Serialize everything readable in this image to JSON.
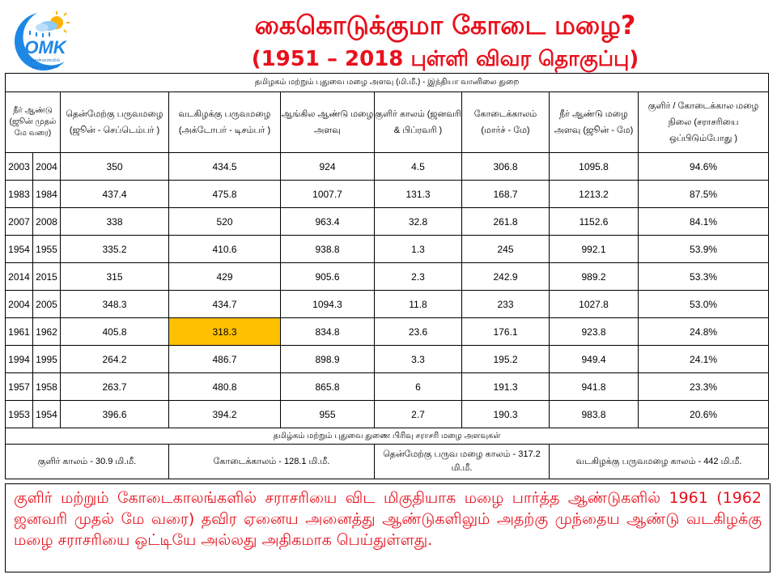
{
  "logo": {
    "brand": "OMK",
    "subtitle1": "சென்னையில்",
    "subtitle2": "ஒரு மழைநாள்"
  },
  "title": "கைகொடுக்குமா கோடை மழை?",
  "subtitle": "(1951 – 2018 புள்ளி விவர தொகுப்பு)",
  "table": {
    "caption": "தமிழகம் மற்றும் புதுவை மழை அளவு (மி.மீ.) - இந்தியா வானிலை துறை",
    "headers": [
      "நீர் ஆண்டு (ஜூன் முதல் மே வரை)",
      "தென்மேற்கு பருவமழை (ஜூன் - செப்டெம்பர் )",
      "வடகிழக்கு பருவமழை (அக்டோபர் - டிசம்பர் )",
      "ஆங்கில ஆண்டு மழை அளவு",
      "குளிர் காலம் (ஜனவரி & பிப்ரவரி )",
      "கோடைக்காலம் (மார்ச் - மே)",
      "நீர் ஆண்டு மழை அளவு (ஜூன் - மே)",
      "குளிர் / கோடைக்கால மழை நிலை (சராசரியை ஒப்பிடும்போது )"
    ],
    "rows": [
      [
        "2003",
        "2004",
        "350",
        "434.5",
        "924",
        "4.5",
        "306.8",
        "1095.8",
        "94.6%"
      ],
      [
        "1983",
        "1984",
        "437.4",
        "475.8",
        "1007.7",
        "131.3",
        "168.7",
        "1213.2",
        "87.5%"
      ],
      [
        "2007",
        "2008",
        "338",
        "520",
        "963.4",
        "32.8",
        "261.8",
        "1152.6",
        "84.1%"
      ],
      [
        "1954",
        "1955",
        "335.2",
        "410.6",
        "938.8",
        "1.3",
        "245",
        "992.1",
        "53.9%"
      ],
      [
        "2014",
        "2015",
        "315",
        "429",
        "905.6",
        "2.3",
        "242.9",
        "989.2",
        "53.3%"
      ],
      [
        "2004",
        "2005",
        "348.3",
        "434.7",
        "1094.3",
        "11.8",
        "233",
        "1027.8",
        "53.0%"
      ],
      [
        "1961",
        "1962",
        "405.8",
        "318.3",
        "834.8",
        "23.6",
        "176.1",
        "923.8",
        "24.8%"
      ],
      [
        "1994",
        "1995",
        "264.2",
        "486.7",
        "898.9",
        "3.3",
        "195.2",
        "949.4",
        "24.1%"
      ],
      [
        "1957",
        "1958",
        "263.7",
        "480.8",
        "865.8",
        "6",
        "191.3",
        "941.8",
        "23.3%"
      ],
      [
        "1953",
        "1954",
        "396.6",
        "394.2",
        "955",
        "2.7",
        "190.3",
        "983.8",
        "20.6%"
      ]
    ],
    "highlight_color": "#ffc000",
    "averages_caption": "தமிழ்கம் மற்றும் புதுவை துணை பிரிவு சராசரி மழை அளவுகள்",
    "averages": [
      "குளிர் காலம் - 30.9 மி.மீ.",
      "கோடைக்காலம் - 128.1 மி.மீ.",
      "தென்மேற்கு பருவ மழை காலம் - 317.2 மி.மீ.",
      "வடகிழக்கு பருவமழை காலம் - 442 மி.மீ."
    ]
  },
  "note": "குளிர் மற்றும் கோடைகாலங்களில் சராசரியை விட மிகுதியாக மழை பார்த்த ஆண்டுகளில் 1961 (1962 ஜனவரி முதல் மே வரை) தவிர ஏனைய அனைத்து ஆண்டுகளிலும் அதற்கு முந்தைய ஆண்டு வடகிழக்கு மழை சராசரியை ஒட்டியே அல்லது அதிகமாக பெய்துள்ளது.",
  "colors": {
    "title": "#e8101c",
    "note_text": "#e8101c",
    "logo_blue": "#1e88e5",
    "logo_sun": "#ffb300"
  }
}
